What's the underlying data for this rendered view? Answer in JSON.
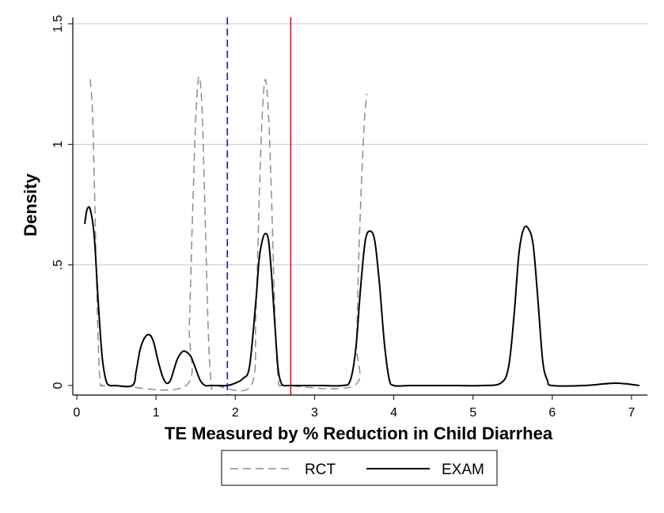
{
  "chart_data": {
    "type": "line",
    "title": "",
    "xlabel": "TE Measured by % Reduction in Child Diarrhea",
    "ylabel": "Density",
    "xlim": [
      -0.05,
      7.2
    ],
    "ylim": [
      0,
      1.5
    ],
    "xticks": [
      0,
      1,
      2,
      3,
      4,
      5,
      6,
      7
    ],
    "xtick_labels": [
      "0",
      "1",
      "2",
      "3",
      "4",
      "5",
      "6",
      "7"
    ],
    "yticks": [
      0,
      0.5,
      1,
      1.5
    ],
    "ytick_labels": [
      "0",
      ".5",
      "1",
      "1.5"
    ],
    "grid": "horizontal",
    "legend_position": "bottom",
    "series": [
      {
        "name": "RCT",
        "style": "dashed",
        "color": "#8c8c8c",
        "x": [
          0.17,
          0.2,
          0.23,
          0.26,
          0.29,
          0.32,
          0.35,
          0.5,
          1.38,
          1.42,
          1.46,
          1.5,
          1.54,
          1.58,
          1.62,
          1.66,
          1.7,
          1.75,
          2.2,
          2.26,
          2.3,
          2.34,
          2.38,
          2.42,
          2.46,
          2.5,
          2.54,
          2.58,
          2.62,
          3.5,
          3.53,
          3.56,
          3.6,
          3.63,
          3.66
        ],
        "y": [
          1.27,
          1.12,
          0.72,
          0.3,
          0.03,
          0.0,
          0.0,
          0.0,
          0.0,
          0.25,
          0.7,
          1.1,
          1.28,
          1.15,
          0.7,
          0.22,
          0.0,
          0.0,
          0.0,
          0.3,
          0.75,
          1.12,
          1.27,
          1.12,
          0.75,
          0.3,
          0.03,
          0.0,
          0.0,
          0.0,
          0.18,
          0.55,
          0.9,
          1.1,
          1.21
        ]
      },
      {
        "name": "EXAM",
        "style": "solid",
        "color": "#000000",
        "x": [
          0.1,
          0.13,
          0.17,
          0.22,
          0.27,
          0.32,
          0.37,
          0.42,
          0.48,
          0.7,
          0.75,
          0.8,
          0.86,
          0.92,
          0.97,
          1.02,
          1.08,
          1.13,
          1.18,
          1.22,
          1.27,
          1.33,
          1.38,
          1.44,
          1.5,
          1.56,
          1.62,
          1.68,
          1.74,
          1.8,
          1.9,
          2.0,
          2.1,
          2.18,
          2.26,
          2.3,
          2.34,
          2.38,
          2.42,
          2.46,
          2.5,
          2.54,
          2.58,
          2.62,
          2.67,
          2.9,
          3.1,
          3.35,
          3.45,
          3.52,
          3.58,
          3.64,
          3.7,
          3.76,
          3.82,
          3.88,
          3.94,
          4.0,
          4.2,
          4.5,
          4.8,
          5.1,
          5.35,
          5.45,
          5.52,
          5.58,
          5.64,
          5.7,
          5.76,
          5.82,
          5.88,
          5.94,
          6.0,
          6.4,
          6.8,
          7.1
        ],
        "y": [
          0.67,
          0.73,
          0.73,
          0.62,
          0.35,
          0.12,
          0.02,
          0.0,
          0.0,
          0.0,
          0.06,
          0.15,
          0.2,
          0.21,
          0.18,
          0.11,
          0.04,
          0.01,
          0.02,
          0.06,
          0.11,
          0.14,
          0.14,
          0.12,
          0.07,
          0.02,
          0.0,
          0.0,
          0.0,
          0.0,
          0.0,
          0.01,
          0.03,
          0.08,
          0.35,
          0.52,
          0.6,
          0.63,
          0.6,
          0.45,
          0.25,
          0.07,
          0.01,
          0.0,
          0.0,
          0.0,
          0.0,
          0.0,
          0.02,
          0.15,
          0.4,
          0.6,
          0.64,
          0.6,
          0.42,
          0.18,
          0.03,
          0.0,
          0.0,
          0.0,
          0.0,
          0.0,
          0.01,
          0.08,
          0.3,
          0.55,
          0.65,
          0.65,
          0.58,
          0.35,
          0.1,
          0.02,
          0.0,
          0.0,
          0.01,
          0.0
        ]
      }
    ],
    "annotations": [
      {
        "type": "vline",
        "x": 1.9,
        "style": "dashed",
        "color": "#1515c8"
      },
      {
        "type": "vline",
        "x": 2.7,
        "style": "solid",
        "color": "#e01010"
      }
    ]
  }
}
